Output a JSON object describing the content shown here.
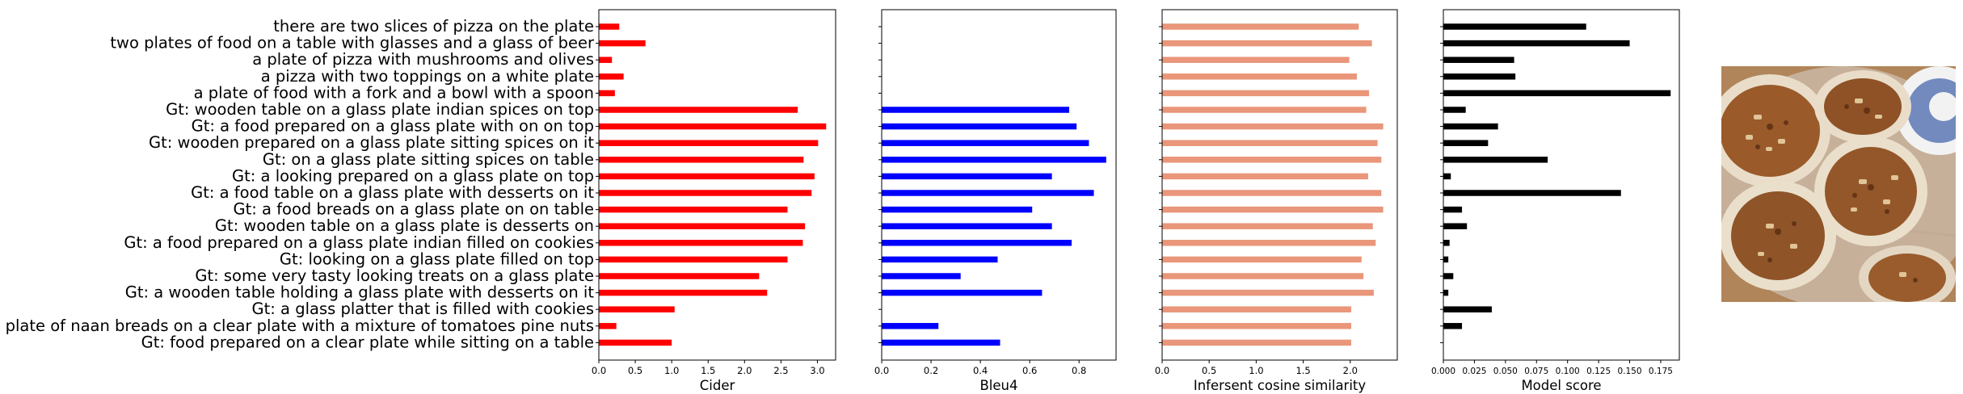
{
  "chart_data": {
    "type": "bar",
    "orientation": "horizontal",
    "categories": [
      "there are two slices of pizza on the plate",
      "two plates of food on a table with glasses and a glass of beer",
      "a plate of pizza with mushrooms and olives",
      "a pizza with two toppings on a white plate",
      "a plate of food with a fork and a bowl with a spoon",
      "Gt: wooden table on a glass plate indian spices on top",
      "Gt: a food prepared on a glass plate with on on top",
      "Gt: wooden prepared on a glass plate sitting spices on it",
      "Gt: on a glass plate sitting spices on table",
      "Gt: a looking prepared on a glass plate on top",
      "Gt: a food table on a glass plate with desserts on it",
      "Gt: a food breads on a glass plate on on table",
      "Gt: wooden table on a glass plate is desserts on",
      "Gt: a food prepared on a glass plate indian filled on cookies",
      "Gt: looking on a glass plate filled on top",
      "Gt: some very tasty looking treats on a glass plate",
      "Gt: a wooden table holding a glass plate with desserts on it",
      "Gt: a glass platter that is filled with cookies",
      "Gt: a plate of naan breads on a clear plate with a mixture of tomatoes pine nuts",
      "Gt: food prepared on a clear plate while sitting on a table"
    ],
    "panels": [
      {
        "xlabel": "Cider",
        "color": "#ff0000",
        "xlim": [
          0,
          3.25
        ],
        "ticks": [
          0,
          0.5,
          1,
          1.5,
          2,
          2.5,
          3
        ],
        "tick_labels": [
          "0.0",
          "0.5",
          "1.0",
          "1.5",
          "2.0",
          "2.5",
          "3.0"
        ],
        "values": [
          0.28,
          0.64,
          0.18,
          0.34,
          0.22,
          2.73,
          3.12,
          3.01,
          2.81,
          2.96,
          2.92,
          2.59,
          2.83,
          2.8,
          2.59,
          2.2,
          2.31,
          1.04,
          0.24,
          1.0
        ]
      },
      {
        "xlabel": "Bleu4",
        "color": "#0000ff",
        "xlim": [
          0,
          0.95
        ],
        "ticks": [
          0,
          0.2,
          0.4,
          0.6,
          0.8
        ],
        "tick_labels": [
          "0.0",
          "0.2",
          "0.4",
          "0.6",
          "0.8"
        ],
        "values": [
          0,
          0,
          0,
          0,
          0,
          0.76,
          0.79,
          0.84,
          0.91,
          0.69,
          0.86,
          0.61,
          0.69,
          0.77,
          0.47,
          0.32,
          0.65,
          0,
          0.23,
          0.48
        ]
      },
      {
        "xlabel": "Infersent cosine similarity",
        "color": "#e9967a",
        "xlim": [
          0,
          2.5
        ],
        "ticks": [
          0,
          0.5,
          1,
          1.5,
          2
        ],
        "tick_labels": [
          "0.0",
          "0.5",
          "1.0",
          "1.5",
          "2.0"
        ],
        "values": [
          2.09,
          2.23,
          1.99,
          2.07,
          2.2,
          2.17,
          2.35,
          2.29,
          2.33,
          2.19,
          2.33,
          2.35,
          2.24,
          2.27,
          2.12,
          2.14,
          2.25,
          2.01,
          2.01,
          2.01
        ]
      },
      {
        "xlabel": "Model score",
        "color": "#000000",
        "xlim": [
          0,
          0.19
        ],
        "ticks": [
          0,
          0.025,
          0.05,
          0.075,
          0.1,
          0.125,
          0.15,
          0.175
        ],
        "tick_labels": [
          "0.000",
          "0.025",
          "0.050",
          "0.075",
          "0.100",
          "0.125",
          "0.150",
          "0.175"
        ],
        "values": [
          0.115,
          0.15,
          0.057,
          0.058,
          0.183,
          0.018,
          0.044,
          0.036,
          0.084,
          0.006,
          0.143,
          0.015,
          0.019,
          0.005,
          0.004,
          0.008,
          0.004,
          0.039,
          0.015,
          0
        ]
      }
    ]
  },
  "image": {
    "icon": "pizza-photo"
  }
}
